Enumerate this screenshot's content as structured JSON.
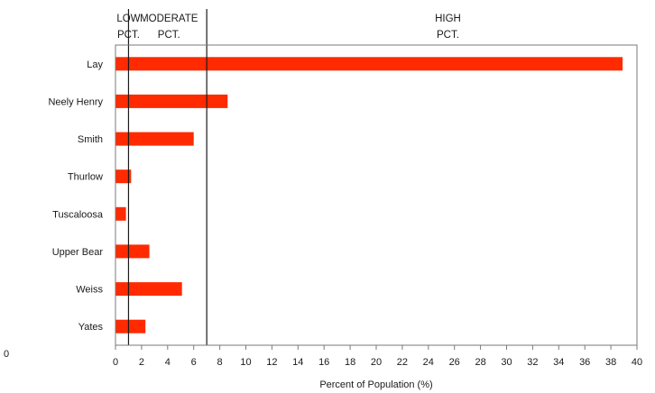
{
  "chart_data": {
    "type": "bar",
    "orientation": "horizontal",
    "categories": [
      "Lay",
      "Neely Henry",
      "Smith",
      "Thurlow",
      "Tuscaloosa",
      "Upper Bear",
      "Weiss",
      "Yates"
    ],
    "values": [
      38.9,
      8.6,
      6.0,
      1.2,
      0.8,
      2.6,
      5.1,
      2.3
    ],
    "bar_color": "#ff2a00",
    "xlabel": "Percent of Population (%)",
    "xlim": [
      0,
      40
    ],
    "x_ticks": [
      "0",
      "2",
      "4",
      "6",
      "8",
      "10",
      "12",
      "14",
      "16",
      "18",
      "20",
      "22",
      "24",
      "26",
      "28",
      "30",
      "32",
      "34",
      "36",
      "38",
      "40"
    ],
    "threshold_lines": [
      1,
      7
    ],
    "zone_labels": [
      {
        "lines": [
          "LOW",
          "PCT."
        ],
        "x": 1
      },
      {
        "lines": [
          "MODERATE",
          "PCT."
        ],
        "x": 4.1
      },
      {
        "lines": [
          "HIGH",
          "PCT."
        ],
        "x": 25.5
      }
    ],
    "stray_text": "0",
    "grid": false,
    "legend": "none"
  }
}
